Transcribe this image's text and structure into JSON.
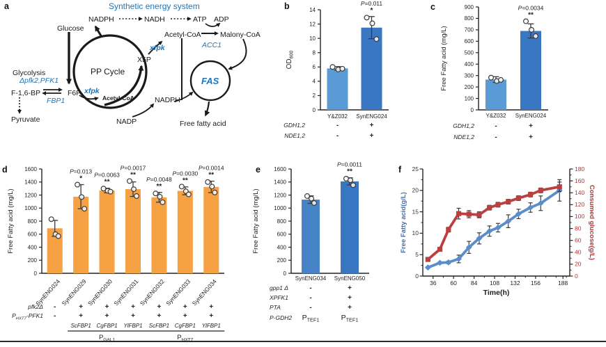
{
  "figure": {
    "panel_labels": {
      "a": "a",
      "b": "b",
      "c": "c",
      "d": "d",
      "e": "e",
      "f": "f"
    }
  },
  "panel_a": {
    "title": "Synthetic energy system",
    "highlight_color": "#1b75bc",
    "nodes": {
      "glucose": "Glucose",
      "nadph_top": "NADPH",
      "nadh": "NADH",
      "atp": "ATP",
      "adp": "ADP",
      "acetyl_coa_top": "Acetyl-CoA",
      "malonyl_coa": "Malony-CoA",
      "acc1": "ACC1",
      "xfpk_top": "xfpk",
      "x5p": "X5P",
      "pp_cycle": "PP Cycle",
      "fas": "FAS",
      "nadph_mid": "NADPH",
      "nadp": "NADP",
      "free_fatty_acid": "Free fatty acid",
      "glycolysis": "Glycolysis",
      "pfk_deletion": "Δpfk2,PFK1",
      "f16bp": "F-1,6-BP",
      "f6p": "F6P",
      "xfpk_lower": "xfpk",
      "acetyl_coa_lower": "Acetyl-CoA",
      "fbp1": "FBP1",
      "pyruvate": "Pyruvate"
    }
  },
  "chart_data": [
    {
      "id": "b",
      "type": "bar",
      "ylabel": "OD_{600}",
      "ylim": [
        0,
        14
      ],
      "ytick_step": 2,
      "categories": [
        "Y&Z032",
        "SynENG024"
      ],
      "values": [
        5.8,
        11.5
      ],
      "bar_colors": [
        "#5b9bd5",
        "#3a77c2"
      ],
      "errors": [
        0.25,
        1.55
      ],
      "points": [
        [
          6.0,
          5.65,
          5.75
        ],
        [
          12.9,
          12.1,
          9.9
        ]
      ],
      "annotations": [
        {
          "bar": 1,
          "p": "P=0.011",
          "stars": "*"
        }
      ],
      "genotype_rows": [
        {
          "label": "GDH1,2",
          "values": [
            "-",
            "+"
          ]
        },
        {
          "label": "NDE1,2",
          "values": [
            "-",
            "+"
          ]
        }
      ]
    },
    {
      "id": "c",
      "type": "bar",
      "ylabel": "Free Fatty acid (mg/L)",
      "ylim": [
        0,
        900
      ],
      "ytick_step": 100,
      "categories": [
        "Y&Z032",
        "SynENG024"
      ],
      "values": [
        265,
        690
      ],
      "bar_colors": [
        "#5b9bd5",
        "#3a77c2"
      ],
      "errors": [
        25,
        62
      ],
      "points": [
        [
          282,
          252,
          262
        ],
        [
          775,
          700,
          645
        ]
      ],
      "annotations": [
        {
          "bar": 1,
          "p": "P=0.0034",
          "stars": "**"
        }
      ],
      "genotype_rows": [
        {
          "label": "GDH1,2",
          "values": [
            "-",
            "+"
          ]
        },
        {
          "label": "NDE1,2",
          "values": [
            "-",
            "+"
          ]
        }
      ]
    },
    {
      "id": "d",
      "type": "bar",
      "ylabel": "Free Fatty acid (mg/L)",
      "ylim": [
        0,
        1600
      ],
      "ytick_step": 200,
      "categories": [
        "SynENG024",
        "SynENG029",
        "SynENG030",
        "SynENG031",
        "SynENG032",
        "SynENG033",
        "SynENG034"
      ],
      "values": [
        690,
        1175,
        1270,
        1290,
        1165,
        1265,
        1325
      ],
      "bar_colors": [
        "#f6a144",
        "#f6a144",
        "#f6a144",
        "#f6a144",
        "#f6a144",
        "#f6a144",
        "#f6a144"
      ],
      "errors": [
        122,
        185,
        35,
        112,
        75,
        60,
        88
      ],
      "points": [
        [
          830,
          600,
          570
        ],
        [
          1360,
          1170,
          990
        ],
        [
          1300,
          1265,
          1252
        ],
        [
          1415,
          1290,
          1185
        ],
        [
          1225,
          1175,
          1090
        ],
        [
          1330,
          1258,
          1210
        ],
        [
          1400,
          1330,
          1240
        ]
      ],
      "annotations": [
        {
          "bar": 1,
          "p": "P=0.013",
          "stars": "*"
        },
        {
          "bar": 2,
          "p": "P=0.0063",
          "stars": "**"
        },
        {
          "bar": 3,
          "p": "P=0.0017",
          "stars": "**"
        },
        {
          "bar": 4,
          "p": "P=0.0048",
          "stars": "**"
        },
        {
          "bar": 5,
          "p": "P=0.0030",
          "stars": "**"
        },
        {
          "bar": 6,
          "p": "P=0.0014",
          "stars": "**"
        }
      ],
      "genotype_rows": [
        {
          "label": "pfk2Δ",
          "values": [
            "-",
            "+",
            "+",
            "+",
            "+",
            "+",
            "+"
          ]
        },
        {
          "label": "P_{HXT7}-PFK1",
          "values": [
            "-",
            "+",
            "+",
            "+",
            "+",
            "+",
            "+"
          ]
        }
      ],
      "gene_row": {
        "labels": [
          "ScFBP1",
          "CgFBP1",
          "YlFBP1",
          "ScFBP1",
          "CgFBP1",
          "YlFBP1"
        ],
        "bars": [
          1,
          2,
          3,
          4,
          5,
          6
        ]
      },
      "promoter_groups": [
        {
          "label": "P_{GAL1}",
          "from": 1,
          "to": 3
        },
        {
          "label": "P_{HXT7}",
          "from": 4,
          "to": 6
        }
      ]
    },
    {
      "id": "e",
      "type": "bar",
      "ylabel": "Free Fatty acid (mg/L)",
      "ylim": [
        0,
        1600
      ],
      "ytick_step": 200,
      "categories": [
        "SynENG034",
        "SynENG050"
      ],
      "values": [
        1130,
        1410
      ],
      "bar_colors": [
        "#4583c6",
        "#3a77c2"
      ],
      "errors": [
        58,
        55
      ],
      "points": [
        [
          1185,
          1145,
          1078
        ],
        [
          1452,
          1428,
          1352
        ]
      ],
      "annotations": [
        {
          "bar": 1,
          "p": "P=0.0011",
          "stars": "**"
        }
      ],
      "genotype_rows": [
        {
          "label": "gpp1 Δ",
          "values": [
            "-",
            "+"
          ]
        },
        {
          "label": "XPFK1",
          "values": [
            "-",
            "+"
          ]
        },
        {
          "label": "PTA",
          "values": [
            "-",
            "+"
          ]
        },
        {
          "label": "P-GDH2",
          "values": [
            "P_{TEF1}",
            "P_{TEF1}"
          ]
        }
      ]
    },
    {
      "id": "f",
      "type": "line",
      "xlabel": "Time(h)",
      "xlim": [
        24,
        196
      ],
      "xticks": [
        36,
        60,
        84,
        108,
        132,
        156,
        188
      ],
      "xminor_step": 12,
      "axes": {
        "left": {
          "label": "Free Fatty acid(g/L)",
          "lim": [
            0,
            25
          ],
          "step": 5,
          "minor_step": 2.5,
          "label_color": "#3f6fb5",
          "tick_color": "#333333"
        },
        "right": {
          "label": "Consumed glucose(g/L)",
          "lim": [
            0,
            180
          ],
          "step": 20,
          "minor_step": 10,
          "label_color": "#b23537",
          "tick_color": "#b23537"
        }
      },
      "series": [
        {
          "name": "Free Fatty acid",
          "axis": "left",
          "color": "#5b8dc8",
          "marker": "diamond",
          "x": [
            30,
            44,
            54,
            66,
            78,
            90,
            102,
            112,
            124,
            136,
            150,
            162,
            184
          ],
          "y": [
            2.0,
            3.1,
            3.2,
            4.0,
            6.7,
            8.8,
            10.5,
            11.3,
            12.8,
            14.5,
            16.0,
            17.0,
            20.0
          ],
          "err": [
            0.2,
            0.2,
            0.3,
            0.9,
            1.4,
            1.3,
            1.2,
            1.0,
            1.5,
            1.1,
            1.1,
            1.7,
            2.5
          ]
        },
        {
          "name": "Consumed glucose",
          "axis": "right",
          "color": "#bc3f3f",
          "marker": "square",
          "x": [
            30,
            44,
            54,
            66,
            78,
            90,
            102,
            112,
            124,
            136,
            150,
            162,
            184
          ],
          "y": [
            28,
            45,
            78,
            105,
            104,
            103,
            115,
            120,
            125,
            131,
            137,
            144,
            150
          ],
          "err": [
            3,
            3,
            4,
            9,
            6,
            5,
            4,
            4,
            4,
            4,
            4,
            4,
            8
          ]
        }
      ]
    }
  ]
}
